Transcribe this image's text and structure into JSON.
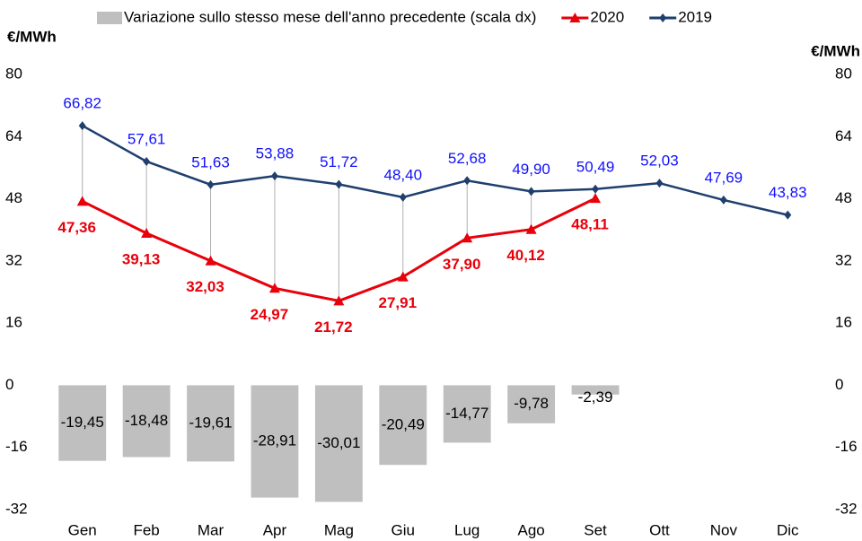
{
  "chart_data": {
    "type": "combo",
    "y_label": "€/MWh",
    "y2_label": "€/MWh",
    "categories": [
      "Gen",
      "Feb",
      "Mar",
      "Apr",
      "Mag",
      "Giu",
      "Lug",
      "Ago",
      "Set",
      "Ott",
      "Nov",
      "Dic"
    ],
    "ylim": [
      -32,
      80
    ],
    "yticks": [
      -32,
      -16,
      0,
      16,
      32,
      48,
      64,
      80
    ],
    "y2lim": [
      -32,
      80
    ],
    "y2ticks": [
      -32,
      -16,
      0,
      16,
      32,
      48,
      64,
      80
    ],
    "legend": "top",
    "grid": false,
    "series": [
      {
        "name": "Variazione sullo stesso mese dell'anno precedente (scala dx)",
        "type": "bar",
        "axis": "y2",
        "color": "#bfbfbf",
        "label_color": "#000000",
        "values": [
          -19.45,
          -18.48,
          -19.61,
          -28.91,
          -30.01,
          -20.49,
          -14.77,
          -9.78,
          -2.39,
          null,
          null,
          null
        ],
        "value_labels": [
          "-19,45",
          "-18,48",
          "-19,61",
          "-28,91",
          "-30,01",
          "-20,49",
          "-14,77",
          "-9,78",
          "-2,39",
          null,
          null,
          null
        ]
      },
      {
        "name": "2020",
        "type": "line",
        "marker": "triangle",
        "color": "#e8000b",
        "label_color": "#e8000b",
        "label_pos": "below",
        "values": [
          47.36,
          39.13,
          32.03,
          24.97,
          21.72,
          27.91,
          37.9,
          40.12,
          48.11,
          null,
          null,
          null
        ],
        "value_labels": [
          "47,36",
          "39,13",
          "32,03",
          "24,97",
          "21,72",
          "27,91",
          "37,90",
          "40,12",
          "48,11",
          null,
          null,
          null
        ]
      },
      {
        "name": "2019",
        "type": "line",
        "marker": "diamond",
        "color": "#1f3f6e",
        "label_color": "#1010ff",
        "label_pos": "above",
        "values": [
          66.82,
          57.61,
          51.63,
          53.88,
          51.72,
          48.4,
          52.68,
          49.9,
          50.49,
          52.03,
          47.69,
          43.83
        ],
        "value_labels": [
          "66,82",
          "57,61",
          "51,63",
          "53,88",
          "51,72",
          "48,40",
          "52,68",
          "49,90",
          "50,49",
          "52,03",
          "47,69",
          "43,83"
        ]
      }
    ]
  }
}
